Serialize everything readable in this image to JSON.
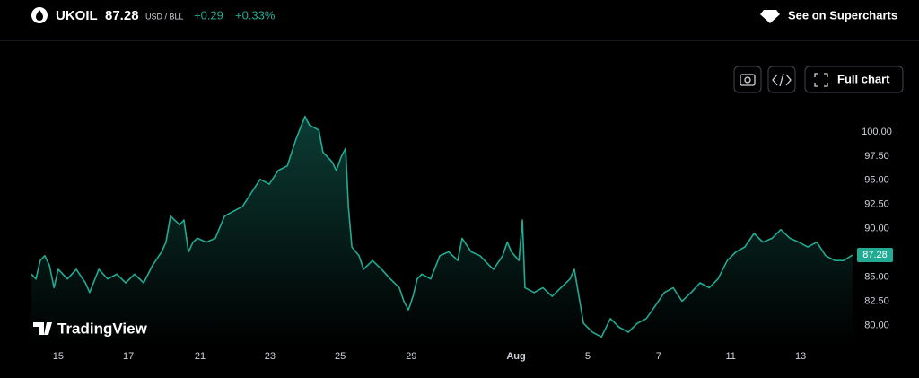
{
  "header": {
    "symbol": "UKOIL",
    "price": "87.28",
    "currency": "USD / BLL",
    "change": "+0.29",
    "change_percent": "+0.33%",
    "supercharts_link": "See on Supercharts",
    "full_chart_button": "Full chart",
    "brand": "TradingView"
  },
  "chart_data": {
    "type": "area",
    "x": [
      0,
      0.13,
      0.25,
      0.38,
      0.51,
      0.64,
      0.76,
      1.02,
      1.27,
      1.53,
      1.65,
      1.91,
      2.16,
      2.42,
      2.67,
      2.92,
      3.18,
      3.43,
      3.69,
      3.81,
      3.94,
      4.2,
      4.32,
      4.45,
      4.58,
      4.7,
      4.96,
      5.21,
      5.47,
      5.72,
      5.98,
      6.23,
      6.48,
      6.74,
      6.99,
      7.25,
      7.5,
      7.75,
      7.88,
      8.14,
      8.26,
      8.52,
      8.64,
      8.77,
      8.9,
      8.98,
      9.08,
      9.28,
      9.41,
      9.66,
      9.92,
      10.17,
      10.42,
      10.55,
      10.68,
      10.81,
      10.93,
      11.06,
      11.31,
      11.57,
      11.82,
      12.08,
      12.2,
      12.46,
      12.71,
      12.97,
      13.09,
      13.35,
      13.48,
      13.6,
      13.81,
      13.91,
      13.98,
      14.24,
      14.49,
      14.75,
      15,
      15.26,
      15.38,
      15.51,
      15.64,
      15.89,
      16.15,
      16.4,
      16.65,
      16.91,
      17.16,
      17.42,
      17.67,
      17.93,
      18.18,
      18.43,
      18.69,
      18.94,
      19.2,
      19.45,
      19.71,
      19.96,
      20.21,
      20.47,
      20.72,
      20.98,
      21.23,
      21.49,
      21.74,
      21.99,
      22.25,
      22.5,
      22.76,
      23.01,
      23.26
    ],
    "series": [
      {
        "name": "UKOIL",
        "color": "#22ab94",
        "values": [
          85.3,
          84.8,
          86.7,
          87.2,
          86.2,
          83.9,
          85.8,
          84.8,
          85.8,
          84.4,
          83.4,
          85.8,
          84.8,
          85.3,
          84.4,
          85.3,
          84.4,
          86.2,
          87.6,
          88.6,
          91.3,
          90.4,
          90.9,
          87.6,
          88.6,
          89.0,
          88.6,
          89.0,
          91.3,
          91.8,
          92.3,
          93.7,
          95.1,
          94.6,
          96.0,
          96.5,
          99.3,
          101.6,
          100.7,
          100.2,
          97.9,
          96.9,
          96.0,
          97.4,
          98.3,
          92.3,
          88.1,
          87.2,
          85.8,
          86.7,
          85.8,
          84.8,
          83.9,
          82.5,
          81.6,
          83.0,
          84.8,
          85.3,
          84.8,
          87.2,
          87.6,
          86.7,
          89.0,
          87.6,
          87.2,
          86.2,
          85.8,
          87.2,
          88.6,
          87.6,
          86.7,
          90.9,
          83.9,
          83.4,
          83.9,
          83.0,
          83.9,
          84.8,
          85.8,
          83.0,
          80.2,
          79.3,
          78.8,
          80.7,
          79.8,
          79.3,
          80.2,
          80.7,
          82.0,
          83.4,
          83.9,
          82.5,
          83.4,
          84.4,
          83.9,
          84.8,
          86.7,
          87.6,
          88.1,
          89.5,
          88.6,
          89.0,
          89.9,
          89.0,
          88.6,
          88.1,
          88.6,
          87.2,
          86.7,
          86.7,
          87.28
        ]
      }
    ],
    "xlim": [
      0,
      24
    ],
    "xticks": [
      {
        "value": 0.76,
        "label": "15"
      },
      {
        "value": 2.75,
        "label": "17"
      },
      {
        "value": 4.78,
        "label": "21"
      },
      {
        "value": 6.76,
        "label": "23"
      },
      {
        "value": 8.75,
        "label": "25"
      },
      {
        "value": 10.76,
        "label": "29"
      },
      {
        "value": 13.73,
        "label": "Aug"
      },
      {
        "value": 15.76,
        "label": "5"
      },
      {
        "value": 17.77,
        "label": "7"
      },
      {
        "value": 19.81,
        "label": "11"
      },
      {
        "value": 21.79,
        "label": "13"
      }
    ],
    "ylim": [
      77.9,
      109
    ],
    "yticks": [
      {
        "value": 80,
        "label": "80.00"
      },
      {
        "value": 82.5,
        "label": "82.50"
      },
      {
        "value": 85,
        "label": "85.00"
      },
      {
        "value": 87.5,
        "label": "87.50"
      },
      {
        "value": 90,
        "label": "90.00"
      },
      {
        "value": 92.5,
        "label": "92.50"
      },
      {
        "value": 95,
        "label": "95.00"
      },
      {
        "value": 97.5,
        "label": "97.50"
      },
      {
        "value": 100,
        "label": "100.00"
      }
    ],
    "grid": false
  }
}
